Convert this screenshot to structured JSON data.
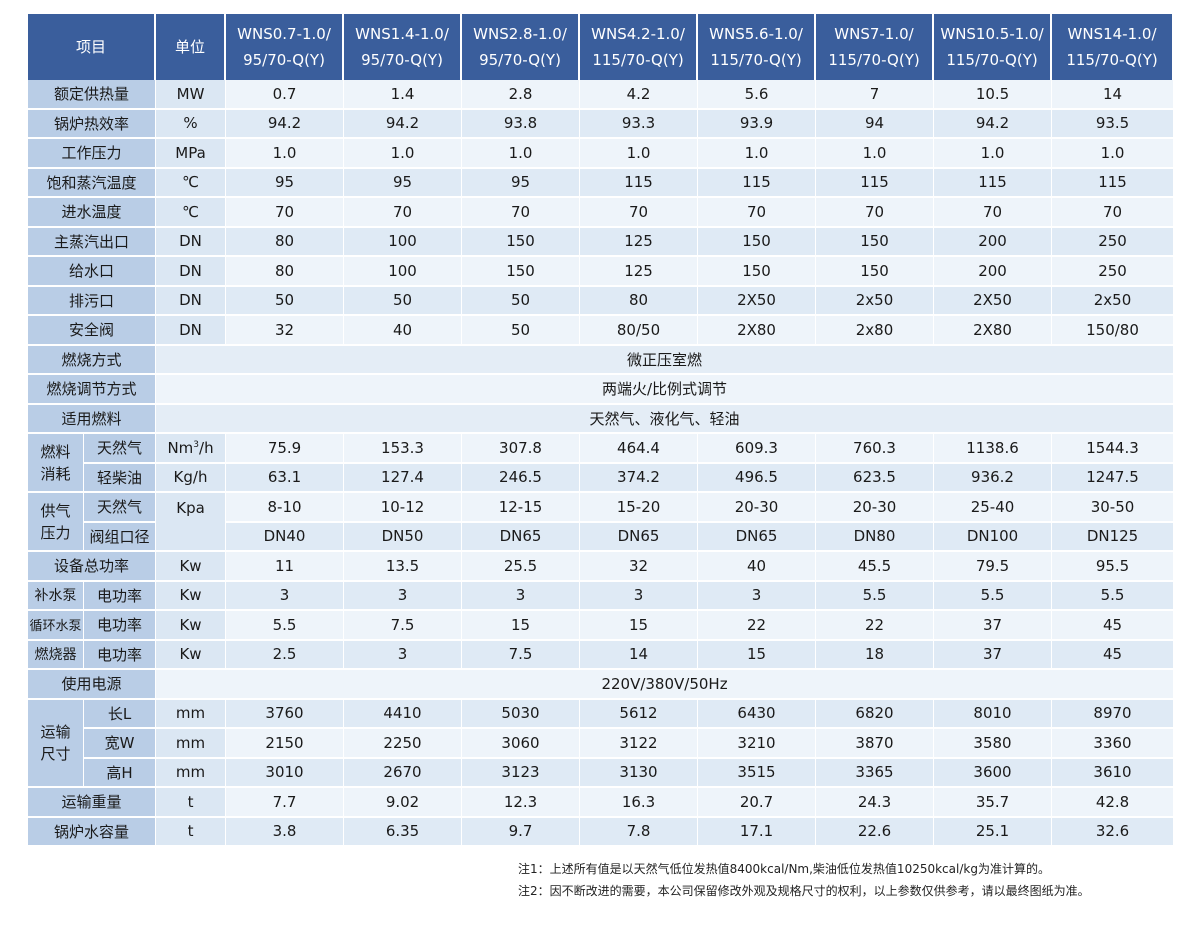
{
  "header": {
    "item": "项目",
    "unit": "单位",
    "models": [
      [
        "WNS0.7-1.0/",
        "95/70-Q(Y)"
      ],
      [
        "WNS1.4-1.0/",
        "95/70-Q(Y)"
      ],
      [
        "WNS2.8-1.0/",
        "95/70-Q(Y)"
      ],
      [
        "WNS4.2-1.0/",
        "115/70-Q(Y)"
      ],
      [
        "WNS5.6-1.0/",
        "115/70-Q(Y)"
      ],
      [
        "WNS7-1.0/",
        "115/70-Q(Y)"
      ],
      [
        "WNS10.5-1.0/",
        "115/70-Q(Y)"
      ],
      [
        "WNS14-1.0/",
        "115/70-Q(Y)"
      ]
    ]
  },
  "rows": {
    "heat": {
      "label": "额定供热量",
      "unit": "MW",
      "values": [
        "0.7",
        "1.4",
        "2.8",
        "4.2",
        "5.6",
        "7",
        "10.5",
        "14"
      ]
    },
    "eff": {
      "label": "锅炉热效率",
      "unit": "%",
      "values": [
        "94.2",
        "94.2",
        "93.8",
        "93.3",
        "93.9",
        "94",
        "94.2",
        "93.5"
      ]
    },
    "press": {
      "label": "工作压力",
      "unit": "MPa",
      "values": [
        "1.0",
        "1.0",
        "1.0",
        "1.0",
        "1.0",
        "1.0",
        "1.0",
        "1.0"
      ]
    },
    "sat": {
      "label": "饱和蒸汽温度",
      "unit": "℃",
      "values": [
        "95",
        "95",
        "95",
        "115",
        "115",
        "115",
        "115",
        "115"
      ]
    },
    "inlet": {
      "label": "进水温度",
      "unit": "℃",
      "values": [
        "70",
        "70",
        "70",
        "70",
        "70",
        "70",
        "70",
        "70"
      ]
    },
    "steam_out": {
      "label": "主蒸汽出口",
      "unit": "DN",
      "values": [
        "80",
        "100",
        "150",
        "125",
        "150",
        "150",
        "200",
        "250"
      ]
    },
    "feed": {
      "label": "给水口",
      "unit": "DN",
      "values": [
        "80",
        "100",
        "150",
        "125",
        "150",
        "150",
        "200",
        "250"
      ]
    },
    "drain": {
      "label": "排污口",
      "unit": "DN",
      "values": [
        "50",
        "50",
        "50",
        "80",
        "2X50",
        "2x50",
        "2X50",
        "2x50"
      ]
    },
    "safety": {
      "label": "安全阀",
      "unit": "DN",
      "values": [
        "32",
        "40",
        "50",
        "80/50",
        "2X80",
        "2x80",
        "2X80",
        "150/80"
      ]
    },
    "burn_mode": {
      "label": "燃烧方式",
      "value": "微正压室燃"
    },
    "burn_ctrl": {
      "label": "燃烧调节方式",
      "value": "两端火/比例式调节"
    },
    "fuel": {
      "label": "适用燃料",
      "value": "天然气、液化气、轻油"
    },
    "consumption": {
      "group": [
        "燃料",
        "消耗"
      ],
      "gas": {
        "label": "天然气",
        "unit_base": "Nm",
        "unit_sup": "3",
        "unit_tail": "/h",
        "values": [
          "75.9",
          "153.3",
          "307.8",
          "464.4",
          "609.3",
          "760.3",
          "1138.6",
          "1544.3"
        ]
      },
      "diesel": {
        "label": "轻柴油",
        "unit": "Kg/h",
        "values": [
          "63.1",
          "127.4",
          "246.5",
          "374.2",
          "496.5",
          "623.5",
          "936.2",
          "1247.5"
        ]
      }
    },
    "supply": {
      "group": [
        "供气",
        "压力"
      ],
      "gas": {
        "label": "天然气",
        "unit": "Kpa",
        "values": [
          "8-10",
          "10-12",
          "12-15",
          "15-20",
          "20-30",
          "20-30",
          "25-40",
          "30-50"
        ]
      },
      "valve": {
        "label": "阀组口径",
        "values": [
          "DN40",
          "DN50",
          "DN65",
          "DN65",
          "DN65",
          "DN80",
          "DN100",
          "DN125"
        ]
      }
    },
    "total_power": {
      "label": "设备总功率",
      "unit": "Kw",
      "values": [
        "11",
        "13.5",
        "25.5",
        "32",
        "40",
        "45.5",
        "79.5",
        "95.5"
      ]
    },
    "makeup_pump": {
      "label": "补水泵",
      "sub": "电功率",
      "unit": "Kw",
      "values": [
        "3",
        "3",
        "3",
        "3",
        "3",
        "5.5",
        "5.5",
        "5.5"
      ]
    },
    "circ_pump": {
      "label": "循环水泵",
      "sub": "电功率",
      "unit": "Kw",
      "values": [
        "5.5",
        "7.5",
        "15",
        "15",
        "22",
        "22",
        "37",
        "45"
      ]
    },
    "burner": {
      "label": "燃烧器",
      "sub": "电功率",
      "unit": "Kw",
      "values": [
        "2.5",
        "3",
        "7.5",
        "14",
        "15",
        "18",
        "37",
        "45"
      ]
    },
    "power_src": {
      "label": "使用电源",
      "value": "220V/380V/50Hz"
    },
    "dims": {
      "group": [
        "运输",
        "尺寸"
      ],
      "length": {
        "label": "长L",
        "unit": "mm",
        "values": [
          "3760",
          "4410",
          "5030",
          "5612",
          "6430",
          "6820",
          "8010",
          "8970"
        ]
      },
      "width": {
        "label": "宽W",
        "unit": "mm",
        "values": [
          "2150",
          "2250",
          "3060",
          "3122",
          "3210",
          "3870",
          "3580",
          "3360"
        ]
      },
      "height": {
        "label": "高H",
        "unit": "mm",
        "values": [
          "3010",
          "2670",
          "3123",
          "3130",
          "3515",
          "3365",
          "3600",
          "3610"
        ]
      }
    },
    "weight": {
      "label": "运输重量",
      "unit": "t",
      "values": [
        "7.7",
        "9.02",
        "12.3",
        "16.3",
        "20.7",
        "24.3",
        "35.7",
        "42.8"
      ]
    },
    "water": {
      "label": "锅炉水容量",
      "unit": "t",
      "values": [
        "3.8",
        "6.35",
        "9.7",
        "7.8",
        "17.1",
        "22.6",
        "25.1",
        "32.6"
      ]
    }
  },
  "notes": {
    "note1": "注1：上述所有值是以天然气低位发热值8400kcal/Nm,柴油低位发热值10250kcal/kg为准计算的。",
    "note2": "注2：因不断改进的需要，本公司保留修改外观及规格尺寸的权利，以上参数仅供参考，请以最终图纸为准。"
  }
}
